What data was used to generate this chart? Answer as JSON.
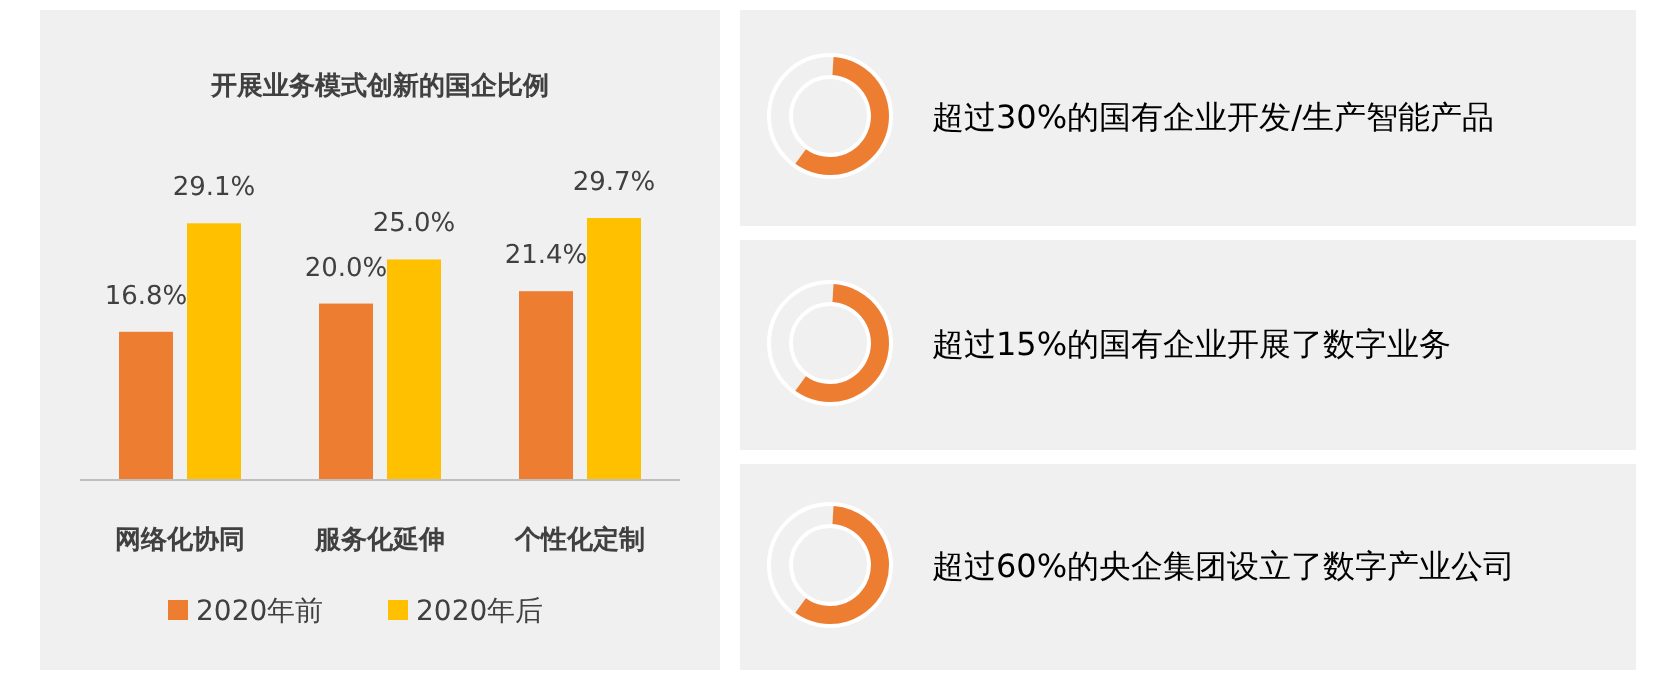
{
  "chart_data": [
    {
      "type": "bar",
      "title": "开展业务模式创新的国企比例",
      "categories": [
        "网络化协同",
        "服务化延伸",
        "个性化定制"
      ],
      "series": [
        {
          "name": "2020年前",
          "color": "#ed7d31",
          "values": [
            16.8,
            20.0,
            21.4
          ],
          "value_labels": [
            "16.8%",
            "20.0%",
            "21.4%"
          ]
        },
        {
          "name": "2020年后",
          "color": "#ffc000",
          "values": [
            29.1,
            25.0,
            29.7
          ],
          "value_labels": [
            "29.1%",
            "25.0%",
            "29.7%"
          ]
        }
      ],
      "legend": "bottom"
    },
    {
      "type": "other",
      "annotations": [
        "超过30%的国有企业开发/生产智能产品",
        "超过15%的国有企业开展了数字业务",
        "超过60%的央企集团设立了数字产业公司"
      ]
    }
  ]
}
